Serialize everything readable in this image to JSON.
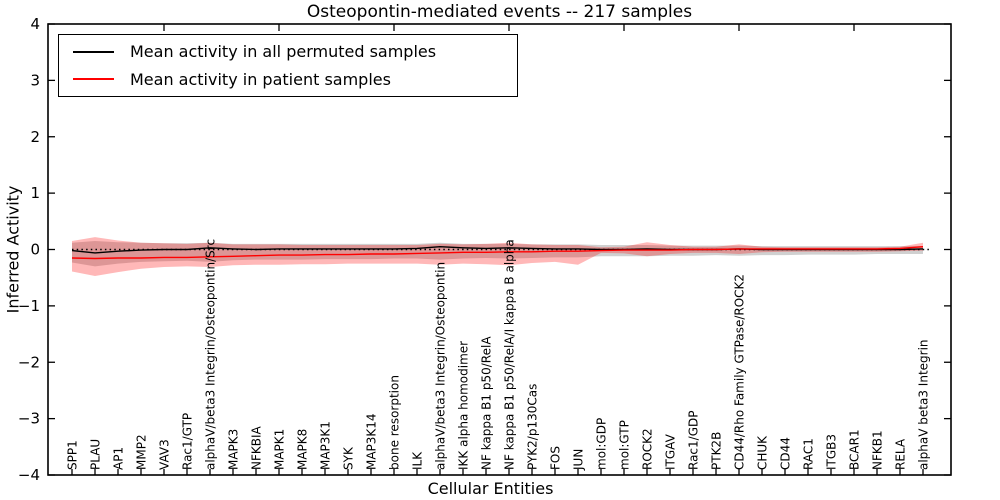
{
  "figure_title": "Osteopontin-mediated events -- 217 samples",
  "chart_data": {
    "type": "line",
    "title": "Osteopontin-mediated events -- 217 samples",
    "xlabel": "Cellular Entities",
    "ylabel": "Inferred Activity",
    "ylim": [
      -4,
      4
    ],
    "ytick_step": 1,
    "grid": false,
    "legend_position": "upper left",
    "frame_color": "#000000",
    "reference_line": {
      "y": 0,
      "style": "dotted",
      "color": "#000000"
    },
    "categories": [
      "SPP1",
      "PLAU",
      "AP1",
      "MMP2",
      "VAV3",
      "Rac1/GTP",
      "alphaV/beta3 Integrin/Osteopontin/Src",
      "MAPK3",
      "NFKBIA",
      "MAPK1",
      "MAPK8",
      "MAP3K1",
      "SYK",
      "MAP3K14",
      "bone resorption",
      "ILK",
      "alphaV/beta3 Integrin/Osteopontin",
      "IKK alpha homodimer",
      "NF kappa B1 p50/RelA",
      "NF kappa B1 p50/RelA/I kappa B alpha",
      "PYK2/p130Cas",
      "FOS",
      "JUN",
      "mol:GDP",
      "mol:GTP",
      "ROCK2",
      "ITGAV",
      "Rac1/GDP",
      "PTK2B",
      "CD44/Rho Family GTPase/ROCK2",
      "CHUK",
      "CD44",
      "RAC1",
      "ITGB3",
      "BCAR1",
      "NFKB1",
      "RELA",
      "alphaV beta3 Integrin"
    ],
    "series": [
      {
        "name": "Mean activity in all permuted samples",
        "color": "#000000",
        "band_color": "rgba(100,100,100,0.30)",
        "values": [
          -0.02,
          -0.06,
          -0.03,
          -0.01,
          0.0,
          0.0,
          0.03,
          0.01,
          0.0,
          0.01,
          0.01,
          0.01,
          0.01,
          0.01,
          0.01,
          0.02,
          0.05,
          0.03,
          0.02,
          0.03,
          0.02,
          0.01,
          0.01,
          0.0,
          0.0,
          0.01,
          0.0,
          0.0,
          0.0,
          0.01,
          0.0,
          0.0,
          0.0,
          0.0,
          0.0,
          0.0,
          0.0,
          0.01
        ],
        "band_upper": [
          0.12,
          0.15,
          0.13,
          0.12,
          0.11,
          0.11,
          0.12,
          0.1,
          0.1,
          0.1,
          0.1,
          0.1,
          0.1,
          0.1,
          0.1,
          0.1,
          0.12,
          0.1,
          0.1,
          0.1,
          0.09,
          0.09,
          0.09,
          0.08,
          0.08,
          0.08,
          0.07,
          0.07,
          0.07,
          0.07,
          0.06,
          0.06,
          0.06,
          0.06,
          0.06,
          0.06,
          0.06,
          0.06
        ],
        "band_lower": [
          -0.23,
          -0.3,
          -0.25,
          -0.22,
          -0.21,
          -0.2,
          -0.22,
          -0.19,
          -0.18,
          -0.18,
          -0.18,
          -0.17,
          -0.17,
          -0.17,
          -0.16,
          -0.16,
          -0.18,
          -0.16,
          -0.15,
          -0.16,
          -0.15,
          -0.14,
          -0.14,
          -0.12,
          -0.12,
          -0.12,
          -0.11,
          -0.11,
          -0.1,
          -0.11,
          -0.1,
          -0.1,
          -0.09,
          -0.09,
          -0.09,
          -0.08,
          -0.08,
          -0.08
        ]
      },
      {
        "name": "Mean activity in patient samples",
        "color": "#ff0000",
        "band_color": "rgba(255,0,0,0.28)",
        "values": [
          -0.15,
          -0.16,
          -0.15,
          -0.15,
          -0.14,
          -0.14,
          -0.13,
          -0.12,
          -0.11,
          -0.1,
          -0.1,
          -0.09,
          -0.09,
          -0.08,
          -0.08,
          -0.07,
          -0.06,
          -0.05,
          -0.05,
          -0.04,
          -0.04,
          -0.03,
          -0.03,
          -0.02,
          -0.01,
          -0.01,
          -0.01,
          0.0,
          0.0,
          0.01,
          0.01,
          0.01,
          0.01,
          0.01,
          0.01,
          0.01,
          0.02,
          0.05
        ],
        "band_upper": [
          0.15,
          0.22,
          0.16,
          0.12,
          0.11,
          0.1,
          0.12,
          0.09,
          0.09,
          0.09,
          0.08,
          0.08,
          0.08,
          0.08,
          0.08,
          0.08,
          0.1,
          0.09,
          0.1,
          0.12,
          0.09,
          0.08,
          0.08,
          0.04,
          0.05,
          0.13,
          0.08,
          0.05,
          0.05,
          0.09,
          0.05,
          0.04,
          0.04,
          0.04,
          0.04,
          0.04,
          0.05,
          0.12
        ],
        "band_lower": [
          -0.39,
          -0.47,
          -0.4,
          -0.34,
          -0.31,
          -0.3,
          -0.31,
          -0.28,
          -0.27,
          -0.27,
          -0.26,
          -0.26,
          -0.25,
          -0.25,
          -0.25,
          -0.25,
          -0.27,
          -0.25,
          -0.26,
          -0.28,
          -0.24,
          -0.22,
          -0.27,
          -0.06,
          -0.07,
          -0.12,
          -0.08,
          -0.06,
          -0.06,
          -0.08,
          -0.05,
          -0.04,
          -0.04,
          -0.04,
          -0.04,
          -0.04,
          -0.03,
          -0.02
        ]
      }
    ]
  }
}
